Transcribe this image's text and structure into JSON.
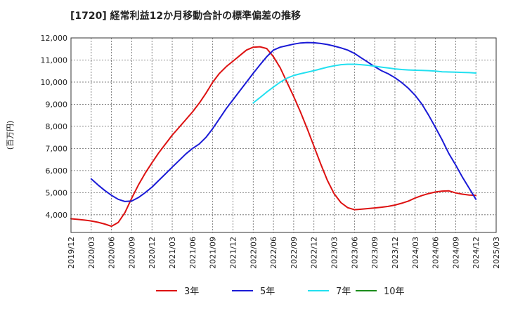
{
  "chart_data": {
    "type": "line",
    "title": "[1720]  経常利益12か月移動合計の標準偏差の推移",
    "ylabel": "(百万円)",
    "xlabel": "",
    "ylim": [
      3200,
      12000
    ],
    "yticks": [
      4000,
      5000,
      6000,
      7000,
      8000,
      9000,
      10000,
      11000,
      12000
    ],
    "ytick_labels": [
      "4,000",
      "5,000",
      "6,000",
      "7,000",
      "8,000",
      "9,000",
      "10,000",
      "11,000",
      "12,000"
    ],
    "xlim": [
      "2019-12",
      "2025-03"
    ],
    "xtick_labels": [
      "2019/12",
      "2020/03",
      "2020/06",
      "2020/09",
      "2020/12",
      "2021/03",
      "2021/06",
      "2021/09",
      "2021/12",
      "2022/03",
      "2022/06",
      "2022/09",
      "2022/12",
      "2023/03",
      "2023/06",
      "2023/09",
      "2023/12",
      "2024/03",
      "2024/06",
      "2024/09",
      "2024/12",
      "2025/03"
    ],
    "grid": true,
    "legend_position": "bottom",
    "series": [
      {
        "name": "3年",
        "color": "#dd1111",
        "x": [
          "2019-12",
          "2020-01",
          "2020-02",
          "2020-03",
          "2020-04",
          "2020-05",
          "2020-06",
          "2020-07",
          "2020-08",
          "2020-09",
          "2020-10",
          "2020-11",
          "2020-12",
          "2021-01",
          "2021-02",
          "2021-03",
          "2021-04",
          "2021-05",
          "2021-06",
          "2021-07",
          "2021-08",
          "2021-09",
          "2021-10",
          "2021-11",
          "2021-12",
          "2022-01",
          "2022-02",
          "2022-03",
          "2022-04",
          "2022-05",
          "2022-06",
          "2022-07",
          "2022-08",
          "2022-09",
          "2022-10",
          "2022-11",
          "2022-12",
          "2023-01",
          "2023-02",
          "2023-03",
          "2023-04",
          "2023-05",
          "2023-06",
          "2023-07",
          "2023-08",
          "2023-09",
          "2023-10",
          "2023-11",
          "2023-12",
          "2024-01",
          "2024-02",
          "2024-03",
          "2024-04",
          "2024-05",
          "2024-06",
          "2024-07",
          "2024-08",
          "2024-09",
          "2024-10",
          "2024-11",
          "2024-12"
        ],
        "values": [
          3820,
          3790,
          3760,
          3720,
          3660,
          3580,
          3480,
          3650,
          4100,
          4750,
          5350,
          5880,
          6350,
          6800,
          7200,
          7600,
          7950,
          8300,
          8650,
          9050,
          9500,
          10000,
          10400,
          10700,
          10950,
          11200,
          11450,
          11580,
          11600,
          11520,
          11150,
          10650,
          10000,
          9350,
          8650,
          7900,
          7100,
          6300,
          5550,
          4950,
          4550,
          4320,
          4230,
          4250,
          4280,
          4310,
          4340,
          4380,
          4440,
          4520,
          4620,
          4760,
          4870,
          4960,
          5030,
          5070,
          5080,
          4990,
          4930,
          4890,
          4880
        ]
      },
      {
        "name": "5年",
        "color": "#1a1ad6",
        "x": [
          "2020-03",
          "2020-04",
          "2020-05",
          "2020-06",
          "2020-07",
          "2020-08",
          "2020-09",
          "2020-10",
          "2020-11",
          "2020-12",
          "2021-01",
          "2021-02",
          "2021-03",
          "2021-04",
          "2021-05",
          "2021-06",
          "2021-07",
          "2021-08",
          "2021-09",
          "2021-10",
          "2021-11",
          "2021-12",
          "2022-01",
          "2022-02",
          "2022-03",
          "2022-04",
          "2022-05",
          "2022-06",
          "2022-07",
          "2022-08",
          "2022-09",
          "2022-10",
          "2022-11",
          "2022-12",
          "2023-01",
          "2023-02",
          "2023-03",
          "2023-04",
          "2023-05",
          "2023-06",
          "2023-07",
          "2023-08",
          "2023-09",
          "2023-10",
          "2023-11",
          "2023-12",
          "2024-01",
          "2024-02",
          "2024-03",
          "2024-04",
          "2024-05",
          "2024-06",
          "2024-07",
          "2024-08",
          "2024-09",
          "2024-10",
          "2024-11",
          "2024-12"
        ],
        "values": [
          5620,
          5350,
          5100,
          4880,
          4700,
          4600,
          4620,
          4780,
          5000,
          5250,
          5550,
          5850,
          6150,
          6450,
          6750,
          7000,
          7200,
          7500,
          7900,
          8350,
          8800,
          9200,
          9600,
          10000,
          10400,
          10780,
          11150,
          11450,
          11580,
          11650,
          11720,
          11770,
          11790,
          11780,
          11750,
          11700,
          11630,
          11550,
          11450,
          11300,
          11100,
          10900,
          10700,
          10520,
          10380,
          10200,
          9980,
          9720,
          9400,
          9000,
          8500,
          7950,
          7380,
          6760,
          6250,
          5700,
          5200,
          4700
        ]
      },
      {
        "name": "7年",
        "color": "#22e0f0",
        "x": [
          "2022-03",
          "2022-04",
          "2022-05",
          "2022-06",
          "2022-07",
          "2022-08",
          "2022-09",
          "2022-10",
          "2022-11",
          "2022-12",
          "2023-01",
          "2023-02",
          "2023-03",
          "2023-04",
          "2023-05",
          "2023-06",
          "2023-07",
          "2023-08",
          "2023-09",
          "2023-10",
          "2023-11",
          "2023-12",
          "2024-01",
          "2024-02",
          "2024-03",
          "2024-04",
          "2024-05",
          "2024-06",
          "2024-07",
          "2024-08",
          "2024-09",
          "2024-10",
          "2024-11",
          "2024-12"
        ],
        "values": [
          9060,
          9300,
          9550,
          9780,
          10000,
          10180,
          10300,
          10380,
          10450,
          10520,
          10600,
          10680,
          10740,
          10790,
          10810,
          10810,
          10790,
          10760,
          10720,
          10680,
          10640,
          10600,
          10570,
          10550,
          10540,
          10530,
          10520,
          10500,
          10470,
          10460,
          10450,
          10440,
          10430,
          10410
        ]
      },
      {
        "name": "10年",
        "color": "#1a8c1a",
        "x": [],
        "values": []
      }
    ]
  }
}
